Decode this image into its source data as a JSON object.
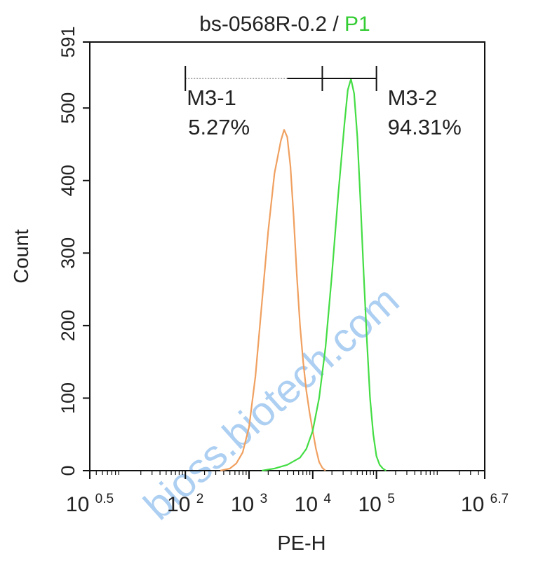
{
  "chart_data": {
    "type": "line",
    "title": {
      "sample": "bs-0568R-0.2",
      "separator": " / ",
      "gate": "P1"
    },
    "xlabel": "PE-H",
    "ylabel": "Count",
    "xscale": "log",
    "xlim": [
      0.5,
      6.7
    ],
    "ylim": [
      0,
      591
    ],
    "yticks": [
      0,
      100,
      200,
      300,
      400,
      500,
      591
    ],
    "xticks": [
      {
        "base": "10",
        "exp": "0.5",
        "value": 0.5
      },
      {
        "base": "10",
        "exp": "2",
        "value": 2
      },
      {
        "base": "10",
        "exp": "3",
        "value": 3
      },
      {
        "base": "10",
        "exp": "4",
        "value": 4
      },
      {
        "base": "10",
        "exp": "5",
        "value": 5
      },
      {
        "base": "10",
        "exp": "6.7",
        "value": 6.7
      }
    ],
    "series": [
      {
        "color": "#f0a060",
        "points": [
          [
            2.55,
            0
          ],
          [
            2.7,
            3
          ],
          [
            2.8,
            10
          ],
          [
            2.9,
            25
          ],
          [
            3.0,
            60
          ],
          [
            3.1,
            130
          ],
          [
            3.2,
            230
          ],
          [
            3.3,
            330
          ],
          [
            3.4,
            410
          ],
          [
            3.5,
            455
          ],
          [
            3.55,
            470
          ],
          [
            3.6,
            460
          ],
          [
            3.65,
            420
          ],
          [
            3.7,
            350
          ],
          [
            3.75,
            270
          ],
          [
            3.8,
            200
          ],
          [
            3.85,
            150
          ],
          [
            3.9,
            110
          ],
          [
            3.95,
            80
          ],
          [
            4.0,
            55
          ],
          [
            4.05,
            30
          ],
          [
            4.1,
            12
          ],
          [
            4.15,
            4
          ],
          [
            4.2,
            0
          ]
        ]
      },
      {
        "color": "#44dd44",
        "points": [
          [
            3.2,
            0
          ],
          [
            3.4,
            3
          ],
          [
            3.6,
            8
          ],
          [
            3.8,
            18
          ],
          [
            3.9,
            30
          ],
          [
            4.0,
            55
          ],
          [
            4.1,
            100
          ],
          [
            4.2,
            170
          ],
          [
            4.3,
            270
          ],
          [
            4.4,
            380
          ],
          [
            4.5,
            480
          ],
          [
            4.55,
            525
          ],
          [
            4.6,
            540
          ],
          [
            4.65,
            520
          ],
          [
            4.7,
            460
          ],
          [
            4.75,
            370
          ],
          [
            4.8,
            270
          ],
          [
            4.85,
            180
          ],
          [
            4.9,
            100
          ],
          [
            4.95,
            50
          ],
          [
            5.0,
            20
          ],
          [
            5.05,
            8
          ],
          [
            5.1,
            3
          ],
          [
            5.15,
            0
          ]
        ]
      }
    ],
    "markers": [
      {
        "label": "M3-1",
        "percent": "5.27%",
        "range": [
          2.0,
          4.15
        ]
      },
      {
        "label": "M3-2",
        "percent": "94.31%",
        "range": [
          4.15,
          5.0
        ]
      }
    ],
    "watermark": "bioss.biotech.com",
    "colors": {
      "gate": "#33cc33",
      "marker": "#111111",
      "axis": "#111111"
    }
  }
}
